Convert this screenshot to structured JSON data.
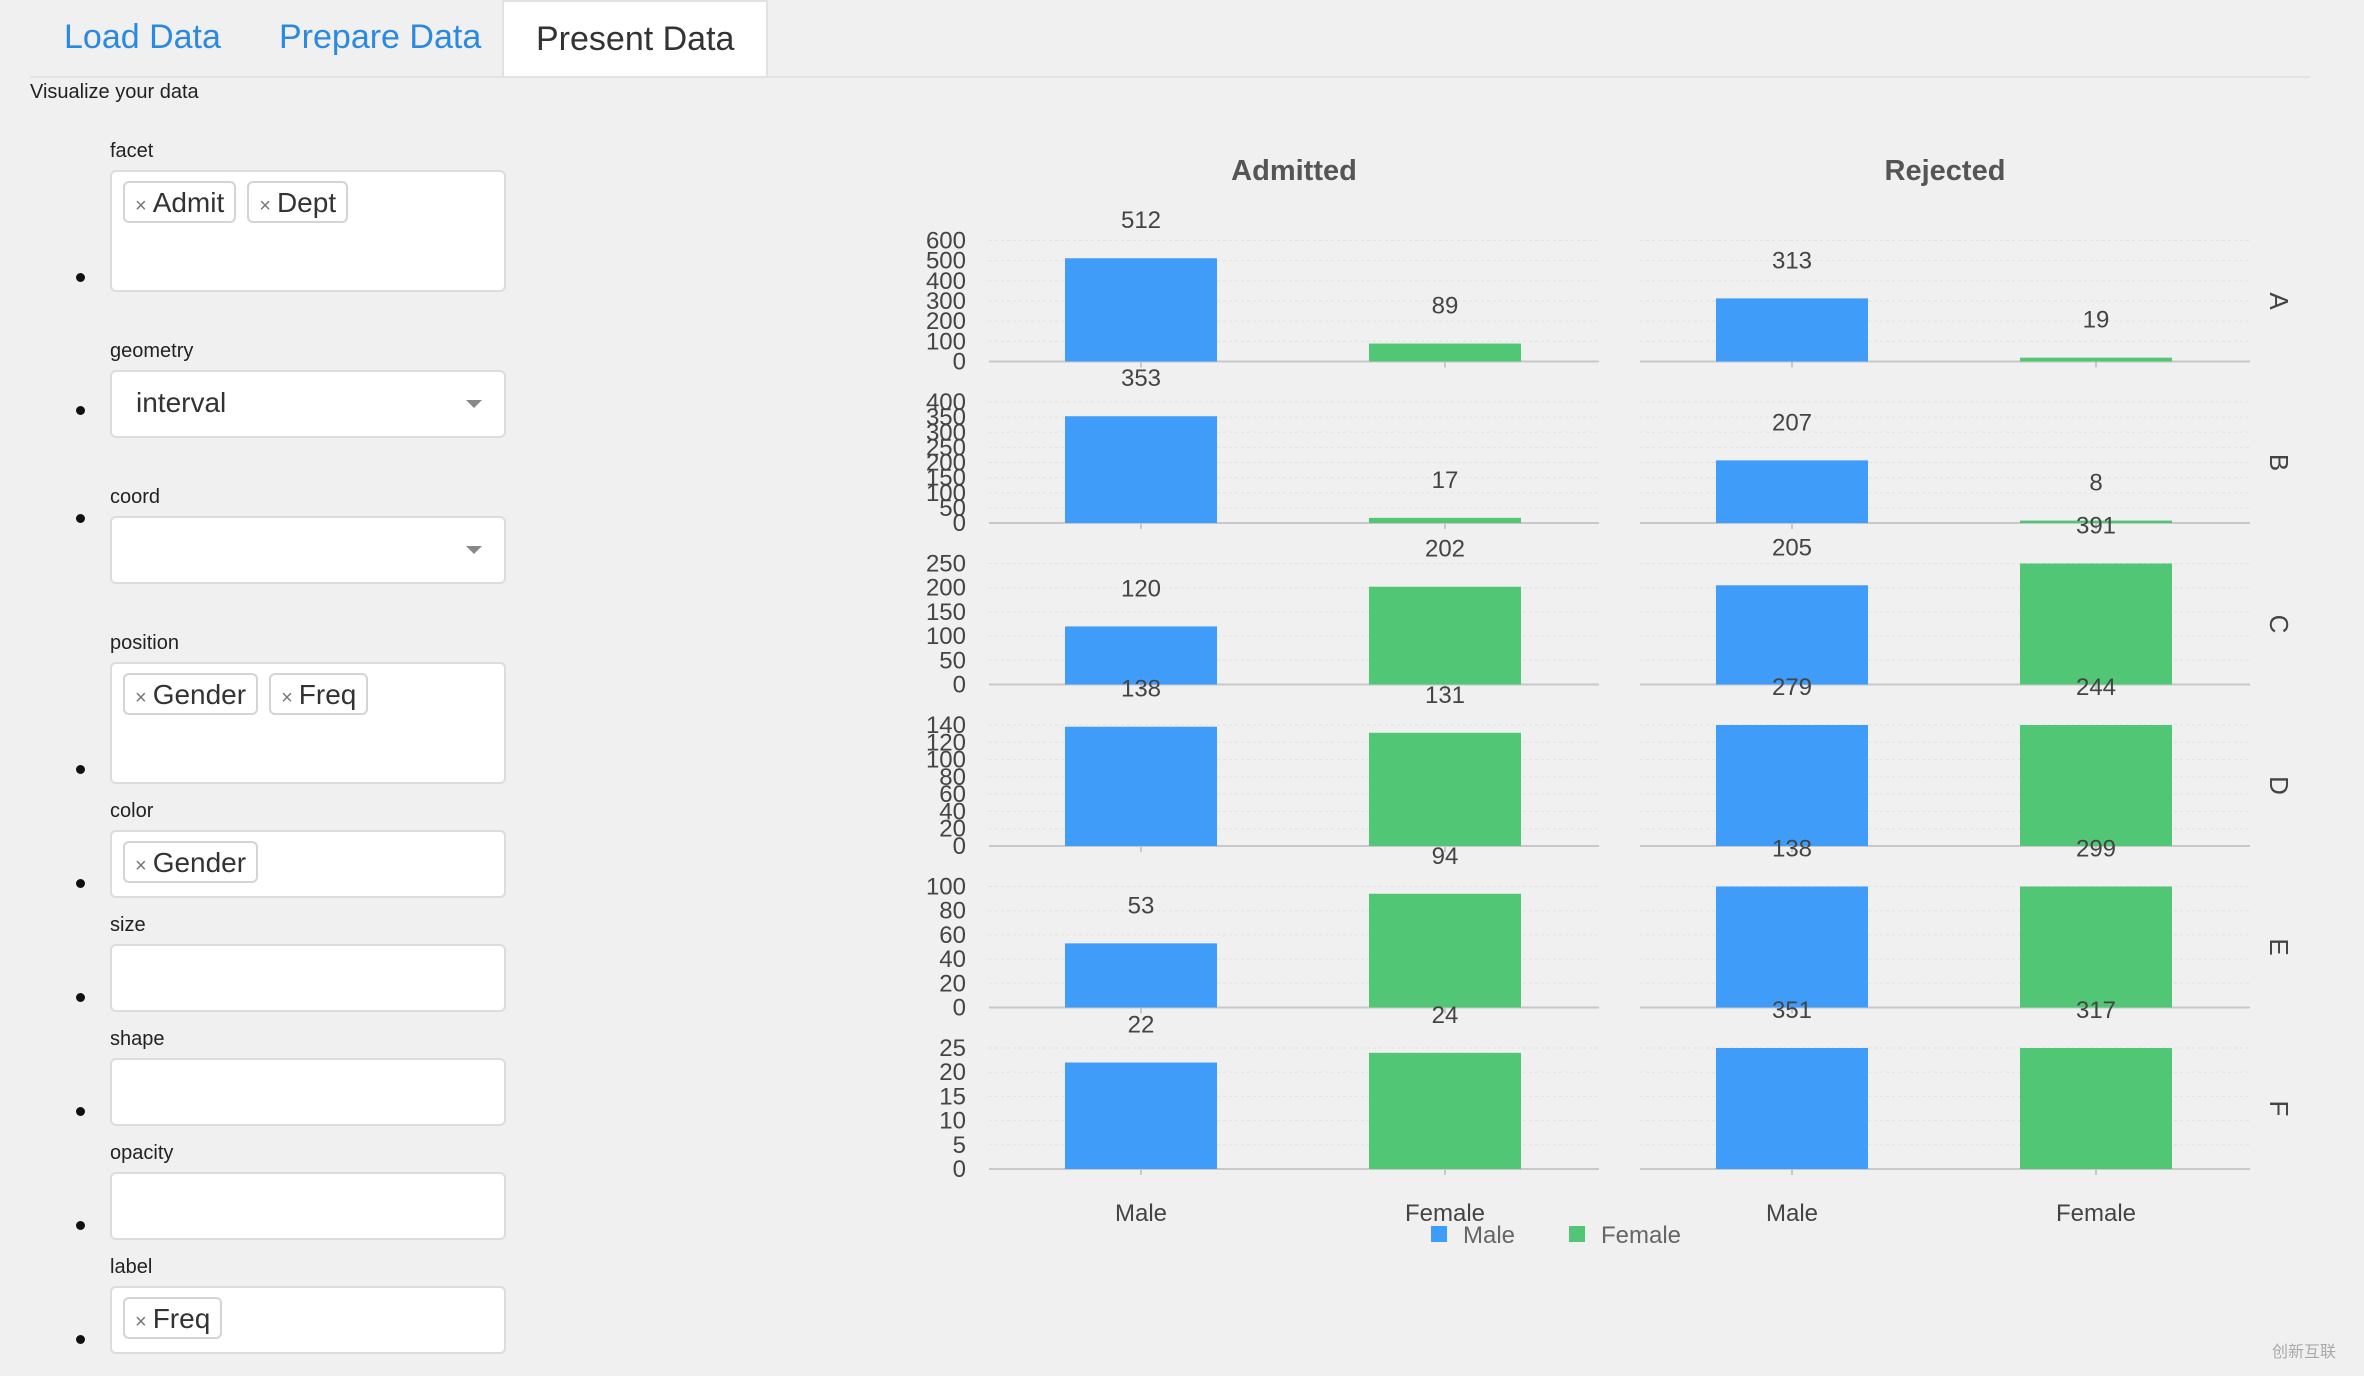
{
  "tabs": [
    {
      "label": "Load Data"
    },
    {
      "label": "Prepare Data"
    },
    {
      "label": "Present Data"
    }
  ],
  "subtitle": "Visualize your data",
  "fields": {
    "facet": {
      "label": "facet",
      "chips": [
        "Admit",
        "Dept"
      ]
    },
    "geometry": {
      "label": "geometry",
      "value": "interval"
    },
    "coord": {
      "label": "coord",
      "value": ""
    },
    "position": {
      "label": "position",
      "chips": [
        "Gender",
        "Freq"
      ]
    },
    "color": {
      "label": "color",
      "chips": [
        "Gender"
      ]
    },
    "size": {
      "label": "size"
    },
    "shape": {
      "label": "shape"
    },
    "opacity": {
      "label": "opacity"
    },
    "label": {
      "label": "label",
      "chips": [
        "Freq"
      ]
    }
  },
  "chip_remove_glyph": "×",
  "watermark": "创新互联",
  "chart_data": {
    "type": "bar",
    "facet_columns": [
      "Admitted",
      "Rejected"
    ],
    "facet_rows": [
      "A",
      "B",
      "C",
      "D",
      "E",
      "F"
    ],
    "categories": [
      "Male",
      "Female"
    ],
    "colors": {
      "Male": "#3f9cf8",
      "Female": "#51c776"
    },
    "legend": [
      "Male",
      "Female"
    ],
    "legend_position": "bottom-center",
    "values": {
      "Admitted": {
        "A": [
          512,
          89
        ],
        "B": [
          353,
          17
        ],
        "C": [
          120,
          202
        ],
        "D": [
          138,
          131
        ],
        "E": [
          53,
          94
        ],
        "F": [
          22,
          24
        ]
      },
      "Rejected": {
        "A": [
          313,
          19
        ],
        "B": [
          207,
          8
        ],
        "C": [
          205,
          391
        ],
        "D": [
          279,
          244
        ],
        "E": [
          138,
          299
        ],
        "F": [
          351,
          317
        ]
      }
    },
    "ylim": {
      "A": [
        0,
        600
      ],
      "B": [
        0,
        400
      ],
      "C": [
        0,
        250
      ],
      "D": [
        0,
        140
      ],
      "E": [
        0,
        100
      ],
      "F": [
        0,
        25
      ]
    },
    "yticks": {
      "A": [
        0,
        100,
        200,
        300,
        400,
        500,
        600
      ],
      "B": [
        0,
        50,
        100,
        150,
        200,
        250,
        300,
        350,
        400
      ],
      "C": [
        0,
        50,
        100,
        150,
        200,
        250
      ],
      "D": [
        0,
        20,
        40,
        60,
        80,
        100,
        120,
        140
      ],
      "E": [
        0,
        20,
        40,
        60,
        80,
        100
      ],
      "F": [
        0,
        5,
        10,
        15,
        20,
        25
      ]
    }
  }
}
